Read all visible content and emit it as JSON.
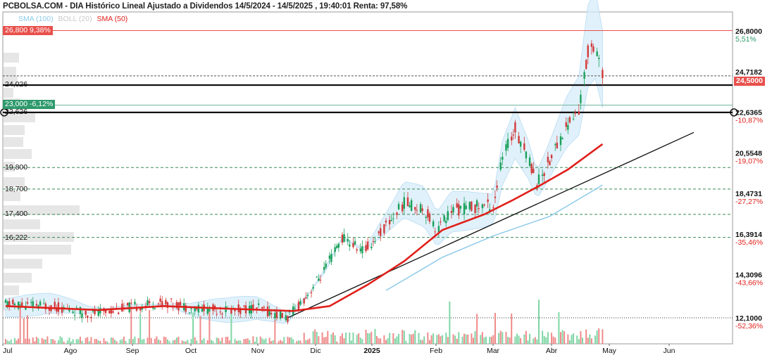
{
  "header": {
    "title": "PCBOLSA.COM - DIA Histórico Lineal Ajustado a Dividendos 14/5/2024 - 14/5/2025 , 19:40:01 Renta: 97,58%",
    "legend": [
      {
        "label": "SMA (100)",
        "color": "#8ecbea"
      },
      {
        "label": "BOLL (20)",
        "color": "#c9c9c9"
      },
      {
        "label": "SMA (50)",
        "color": "#e0201b"
      }
    ]
  },
  "tags": {
    "top_level": "26,800  9,38%",
    "mid_level": "23,000  -6,12%",
    "last_price": "24,5000"
  },
  "levels": [
    {
      "value": 24.026,
      "label": "24,026",
      "style": "bold"
    },
    {
      "value": 22.626,
      "label": "22,626",
      "style": "bold"
    },
    {
      "value": 19.8,
      "label": "19,800",
      "style": "dashed"
    },
    {
      "value": 18.7,
      "label": "18,700",
      "style": "dashed"
    },
    {
      "value": 17.4,
      "label": "17,400",
      "style": "dashed"
    },
    {
      "value": 16.222,
      "label": "16,222",
      "style": "dashed"
    }
  ],
  "chart_data": {
    "type": "candlestick",
    "title": "PCBOLSA.COM - DIA Histórico Lineal Ajustado a Dividendos 14/5/2024 - 14/5/2025",
    "x_ticks": [
      "Jul",
      "Ago",
      "Sep",
      "Oct",
      "Nov",
      "Dic",
      "2025",
      "Feb",
      "Mar",
      "Abr",
      "May",
      "Jun"
    ],
    "y_ticks": [
      {
        "value": 26.8,
        "label": "26,8000",
        "pct": "5,51%"
      },
      {
        "value": 24.7182,
        "label": "24,7182",
        "pct": ""
      },
      {
        "value": 22.6365,
        "label": "22,6365",
        "pct": "-10,87%"
      },
      {
        "value": 20.5548,
        "label": "20,5548",
        "pct": "-19,07%"
      },
      {
        "value": 18.4731,
        "label": "18,4731",
        "pct": "-27,27%"
      },
      {
        "value": 16.3914,
        "label": "16,3914",
        "pct": "-35,46%"
      },
      {
        "value": 14.3096,
        "label": "14,3096",
        "pct": "-43,66%"
      },
      {
        "value": 12.1,
        "label": "12,1000",
        "pct": "-52,36%"
      }
    ],
    "ylim": [
      11.2,
      27.3
    ],
    "last_price": 24.5,
    "close_series": [
      {
        "date": "2024-06-20",
        "close": 12.8
      },
      {
        "date": "2024-07-15",
        "close": 12.7
      },
      {
        "date": "2024-08-05",
        "close": 12.3
      },
      {
        "date": "2024-08-25",
        "close": 12.6
      },
      {
        "date": "2024-09-15",
        "close": 12.9
      },
      {
        "date": "2024-10-01",
        "close": 12.6
      },
      {
        "date": "2024-10-20",
        "close": 12.5
      },
      {
        "date": "2024-11-05",
        "close": 12.6
      },
      {
        "date": "2024-11-22",
        "close": 12.1
      },
      {
        "date": "2024-12-03",
        "close": 13.3
      },
      {
        "date": "2024-12-12",
        "close": 14.5
      },
      {
        "date": "2024-12-22",
        "close": 16.2
      },
      {
        "date": "2025-01-03",
        "close": 15.5
      },
      {
        "date": "2025-01-15",
        "close": 16.8
      },
      {
        "date": "2025-01-25",
        "close": 18.0
      },
      {
        "date": "2025-02-05",
        "close": 17.7
      },
      {
        "date": "2025-02-12",
        "close": 16.6
      },
      {
        "date": "2025-02-20",
        "close": 17.6
      },
      {
        "date": "2025-03-05",
        "close": 17.8
      },
      {
        "date": "2025-03-15",
        "close": 17.9
      },
      {
        "date": "2025-03-20",
        "close": 20.3
      },
      {
        "date": "2025-03-27",
        "close": 21.8
      },
      {
        "date": "2025-04-03",
        "close": 20.4
      },
      {
        "date": "2025-04-08",
        "close": 19.0
      },
      {
        "date": "2025-04-14",
        "close": 20.0
      },
      {
        "date": "2025-04-24",
        "close": 21.9
      },
      {
        "date": "2025-05-01",
        "close": 22.7
      },
      {
        "date": "2025-05-06",
        "close": 25.7
      },
      {
        "date": "2025-05-10",
        "close": 26.3
      },
      {
        "date": "2025-05-14",
        "close": 24.5
      }
    ],
    "sma50": [
      {
        "date": "2024-06-20",
        "value": 12.7
      },
      {
        "date": "2024-08-10",
        "value": 12.5
      },
      {
        "date": "2024-09-15",
        "value": 12.7
      },
      {
        "date": "2024-10-25",
        "value": 12.55
      },
      {
        "date": "2024-11-25",
        "value": 12.45
      },
      {
        "date": "2024-12-15",
        "value": 12.7
      },
      {
        "date": "2025-01-05",
        "value": 13.8
      },
      {
        "date": "2025-01-25",
        "value": 15.0
      },
      {
        "date": "2025-02-15",
        "value": 16.6
      },
      {
        "date": "2025-03-10",
        "value": 17.4
      },
      {
        "date": "2025-03-25",
        "value": 18.1
      },
      {
        "date": "2025-04-10",
        "value": 18.9
      },
      {
        "date": "2025-04-25",
        "value": 19.7
      },
      {
        "date": "2025-05-14",
        "value": 21.0
      }
    ],
    "sma100": [
      {
        "date": "2025-01-15",
        "value": 13.5
      },
      {
        "date": "2025-02-15",
        "value": 15.2
      },
      {
        "date": "2025-03-15",
        "value": 16.3
      },
      {
        "date": "2025-04-15",
        "value": 17.3
      },
      {
        "date": "2025-05-14",
        "value": 18.9
      }
    ]
  },
  "volume_axis": {
    "label": "12,1000"
  }
}
